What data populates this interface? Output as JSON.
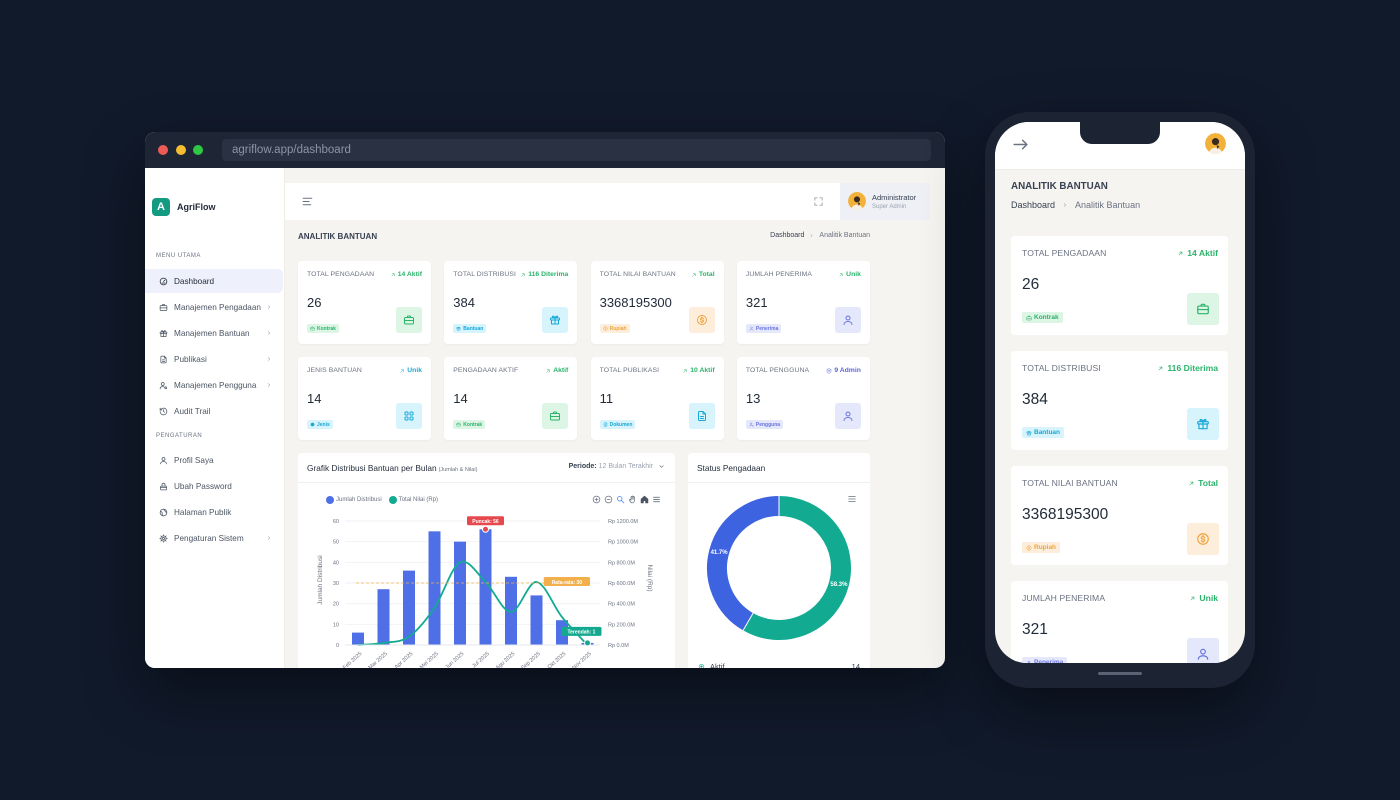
{
  "browser": {
    "url": "agriflow.app/dashboard"
  },
  "brand": {
    "logo_letter": "A",
    "name": "AgriFlow",
    "color": "#149a80"
  },
  "sidebar": {
    "menu_title": "MENU UTAMA",
    "items": [
      {
        "label": "Dashboard",
        "icon": "gauge-icon",
        "active": true,
        "has_submenu": false
      },
      {
        "label": "Manajemen Pengadaan",
        "icon": "briefcase-icon",
        "active": false,
        "has_submenu": true
      },
      {
        "label": "Manajemen Bantuan",
        "icon": "gift-icon",
        "active": false,
        "has_submenu": true
      },
      {
        "label": "Publikasi",
        "icon": "document-icon",
        "active": false,
        "has_submenu": true
      },
      {
        "label": "Manajemen Pengguna",
        "icon": "users-icon",
        "active": false,
        "has_submenu": true
      },
      {
        "label": "Audit Trail",
        "icon": "history-icon",
        "active": false,
        "has_submenu": false
      }
    ],
    "settings_title": "PENGATURAN",
    "settings_items": [
      {
        "label": "Profil Saya",
        "icon": "user-icon",
        "active": false,
        "has_submenu": false
      },
      {
        "label": "Ubah Password",
        "icon": "lock-icon",
        "active": false,
        "has_submenu": false
      },
      {
        "label": "Halaman Publik",
        "icon": "globe-icon",
        "active": false,
        "has_submenu": false
      },
      {
        "label": "Pengaturan Sistem",
        "icon": "gear-icon",
        "active": false,
        "has_submenu": true
      }
    ],
    "chevron_icon": "chevron-right-icon"
  },
  "topbar": {
    "menu_icon": "hamburger-icon",
    "fullscreen_icon": "fullscreen-icon",
    "user_name": "Administrator",
    "user_role": "Super Admin"
  },
  "page": {
    "title": "ANALITIK BANTUAN",
    "breadcrumb_home": "Dashboard",
    "breadcrumb_separator_icon": "chevron-right-icon",
    "breadcrumb_current": "Analitik Bantuan"
  },
  "stats": [
    {
      "title": "TOTAL PENGADAAN",
      "trend": "14 Aktif",
      "trend_icon": "trend-up-icon",
      "trend_color": "#2bb36a",
      "value": "26",
      "badge": "Kontrak",
      "badge_icon": "briefcase-icon",
      "icon": "briefcase-icon",
      "accent": "#2bb36a",
      "accent_bg": "#dcf5e5"
    },
    {
      "title": "TOTAL DISTRIBUSI",
      "trend": "116 Diterima",
      "trend_icon": "trend-up-icon",
      "trend_color": "#2bb36a",
      "value": "384",
      "badge": "Bantuan",
      "badge_icon": "gift-icon",
      "icon": "gift-icon",
      "accent": "#18a8d8",
      "accent_bg": "#d7f3fb"
    },
    {
      "title": "TOTAL NILAI BANTUAN",
      "trend": "Total",
      "trend_icon": "trend-up-icon",
      "trend_color": "#2bb36a",
      "value": "3368195300",
      "badge": "Rupiah",
      "badge_icon": "coin-icon",
      "icon": "coin-icon",
      "accent": "#f0a43c",
      "accent_bg": "#fdeedb"
    },
    {
      "title": "JUMLAH PENERIMA",
      "trend": "Unik",
      "trend_icon": "trend-up-icon",
      "trend_color": "#2bb36a",
      "value": "321",
      "badge": "Penerima",
      "badge_icon": "user-icon",
      "icon": "user-icon",
      "accent": "#6873e0",
      "accent_bg": "#e5e8fb"
    },
    {
      "title": "JENIS BANTUAN",
      "trend": "Unik",
      "trend_icon": "trend-up-icon",
      "trend_color": "#18a8d8",
      "value": "14",
      "badge": "Jenis",
      "badge_icon": "circle-icon",
      "icon": "grid-icon",
      "accent": "#18a8d8",
      "accent_bg": "#d7f3fb"
    },
    {
      "title": "PENGADAAN AKTIF",
      "trend": "Aktif",
      "trend_icon": "trend-up-icon",
      "trend_color": "#2bb36a",
      "value": "14",
      "badge": "Kontrak",
      "badge_icon": "briefcase-icon",
      "icon": "briefcase-icon",
      "accent": "#2bb36a",
      "accent_bg": "#dcf5e5"
    },
    {
      "title": "TOTAL PUBLIKASI",
      "trend": "10 Aktif",
      "trend_icon": "trend-up-icon",
      "trend_color": "#2bb36a",
      "value": "11",
      "badge": "Dokumen",
      "badge_icon": "document-icon",
      "icon": "document-icon",
      "accent": "#18a8d8",
      "accent_bg": "#d7f3fb"
    },
    {
      "title": "TOTAL PENGGUNA",
      "trend": "9 Admin",
      "trend_icon": "shield-icon",
      "trend_color": "#5b67dc",
      "value": "13",
      "badge": "Pengguna",
      "badge_icon": "users-icon",
      "icon": "user-icon",
      "accent": "#6873e0",
      "accent_bg": "#e5e8fb"
    }
  ],
  "distribution_chart": {
    "title": "Grafik Distribusi Bantuan per Bulan",
    "subtitle": "(Jumlah & Nilai)",
    "period_label": "Periode:",
    "period_value": "12 Bulan Terakhir",
    "period_icon": "chevron-down-icon",
    "legend": [
      {
        "label": "Jumlah Distribusi",
        "color": "#4f6fe6"
      },
      {
        "label": "Total Nilai (Rp)",
        "color": "#12ab92"
      }
    ],
    "toolbar": [
      {
        "icon": "zoom-in-icon",
        "color": "#6b7280"
      },
      {
        "icon": "zoom-out-icon",
        "color": "#6b7280"
      },
      {
        "icon": "search-icon",
        "color": "#3b82f6"
      },
      {
        "icon": "hand-icon",
        "color": "#6b7280"
      },
      {
        "icon": "home-icon",
        "color": "#4b5563"
      },
      {
        "icon": "menu-icon",
        "color": "#4b5563"
      }
    ]
  },
  "status_chart": {
    "title": "Status Pengadaan",
    "menu_icon": "menu-icon",
    "legend": [
      {
        "label": "Aktif",
        "value": "14",
        "icon": "ring-icon",
        "color": "#12ab92"
      }
    ]
  },
  "phone": {
    "back_icon": "arrow-right-icon",
    "visible_cards": 4
  },
  "chart_data": [
    {
      "type": "bar",
      "title": "Grafik Distribusi Bantuan per Bulan",
      "subtitle": "(Jumlah & Nilai)",
      "categories": [
        "Feb 2025",
        "Mar 2025",
        "Apr 2025",
        "Mei 2025",
        "Jun 2025",
        "Jul 2025",
        "Agu 2025",
        "Sep 2025",
        "Okt 2025",
        "Nov 2025"
      ],
      "series": [
        {
          "name": "Jumlah Distribusi",
          "type": "bar",
          "axis": "left",
          "color": "#4f6fe6",
          "values": [
            6,
            27,
            36,
            55,
            50,
            56,
            33,
            24,
            12,
            1
          ]
        },
        {
          "name": "Total Nilai (Rp)",
          "type": "line",
          "axis": "right",
          "unit": "M",
          "color": "#12ab92",
          "values": [
            0,
            20,
            80,
            360,
            800,
            610,
            320,
            610,
            270,
            0
          ]
        }
      ],
      "xlabel": "",
      "ylabel": "Jumlah Distribusi",
      "ylabel_right": "Nilai (Rp)",
      "ylim": [
        0,
        60
      ],
      "yticks": [
        0,
        10,
        20,
        30,
        40,
        50,
        60
      ],
      "ylim_right": [
        0,
        1200
      ],
      "yticks_right": [
        0,
        200,
        400,
        600,
        800,
        1000,
        1200
      ],
      "yticks_right_labels": [
        "Rp 0.0M",
        "Rp 200.0M",
        "Rp 400.0M",
        "Rp 600.0M",
        "Rp 800.0M",
        "Rp 1000.0M",
        "Rp 1200.0M"
      ],
      "annotations": [
        {
          "kind": "point",
          "label": "Puncak: 56",
          "category": "Jul 2025",
          "value": 56,
          "color": "#e5484d"
        },
        {
          "kind": "hline",
          "label": "Rata-rata: 30",
          "value": 30,
          "color": "#f2b04c"
        },
        {
          "kind": "point",
          "label": "Terendah: 1",
          "category": "Nov 2025",
          "value": 1,
          "color": "#14a98f"
        }
      ],
      "grid": true,
      "legend_position": "top-left"
    },
    {
      "type": "pie",
      "donut": true,
      "title": "Status Pengadaan",
      "slices": [
        {
          "label": "Aktif",
          "value": 14,
          "percent": 58.3,
          "color": "#12ab92"
        },
        {
          "percent": 41.7,
          "color": "#3d63e0"
        }
      ],
      "legend_position": "bottom"
    }
  ]
}
